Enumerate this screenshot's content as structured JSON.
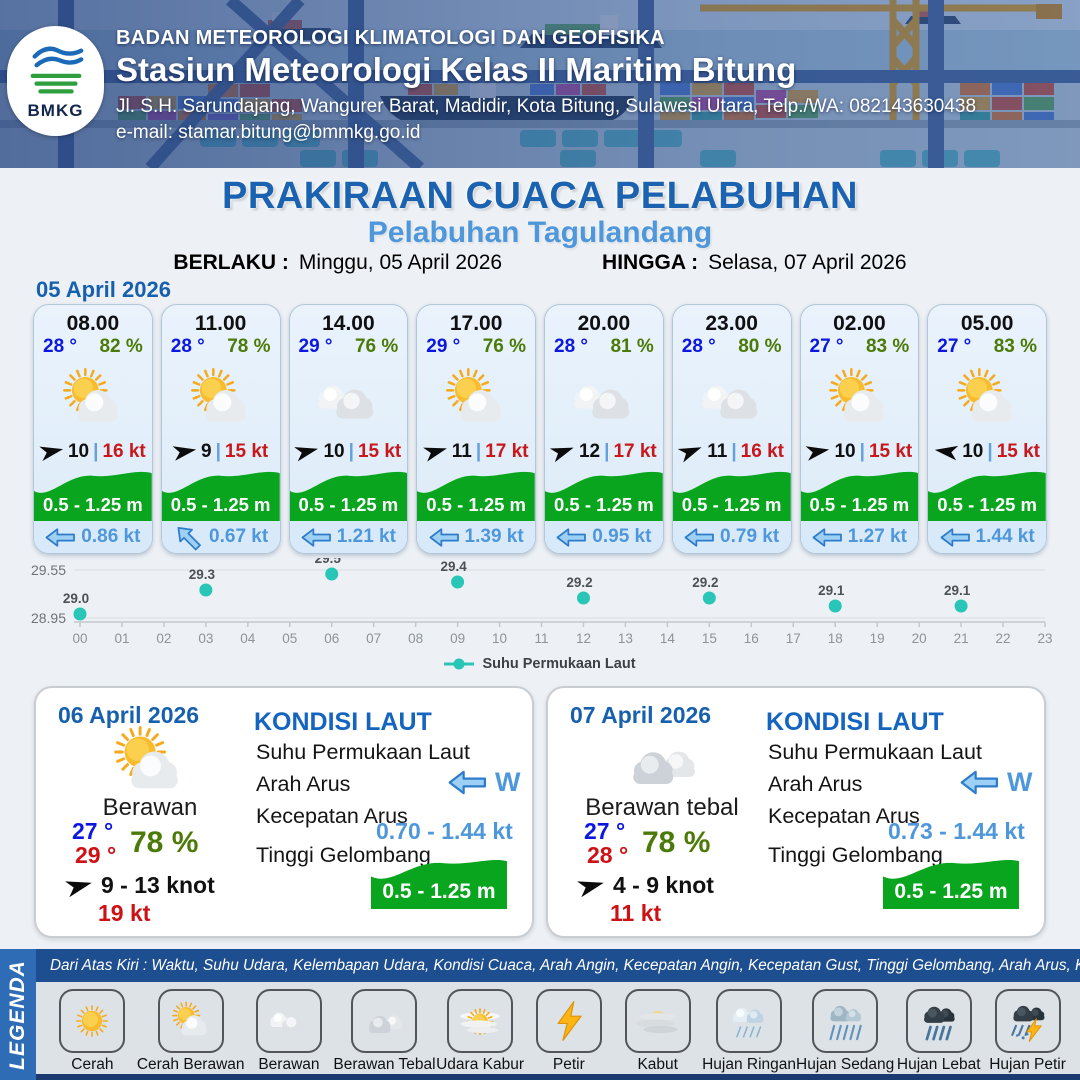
{
  "header": {
    "logo_text": "BMKG",
    "org": "BADAN METEOROLOGI KLIMATOLOGI DAN GEOFISIKA",
    "station": "Stasiun Meteorologi Kelas II Maritim Bitung",
    "address": "Jl. S.H. Sarundajang, Wangurer Barat, Madidir, Kota Bitung, Sulawesi Utara, Telp./WA: 082143630438",
    "email": "e-mail: stamar.bitung@bmmkg.go.id"
  },
  "title": {
    "main": "PRAKIRAAN CUACA PELABUHAN",
    "subtitle": "Pelabuhan Tagulandang",
    "berlaku_label": "BERLAKU :",
    "berlaku_value": "Minggu, 05 April 2026",
    "hingga_label": "HINGGA :",
    "hingga_value": "Selasa, 07 April 2026"
  },
  "forecast": {
    "date": "05 April 2026",
    "cards": [
      {
        "time": "08.00",
        "temp": "28 °",
        "humidity": "82 %",
        "icon": "cerah-berawan",
        "wind_speed": "10",
        "gust": "16 kt",
        "wave": "0.5 - 1.25 m",
        "current": "0.86 kt",
        "wind_dir_deg": -12,
        "current_rotation": 0
      },
      {
        "time": "11.00",
        "temp": "28 °",
        "humidity": "78 %",
        "icon": "cerah-berawan",
        "wind_speed": "9",
        "gust": "15 kt",
        "wave": "0.5 - 1.25 m",
        "current": "0.67 kt",
        "wind_dir_deg": -10,
        "current_rotation": 45
      },
      {
        "time": "14.00",
        "temp": "29 °",
        "humidity": "76 %",
        "icon": "berawan",
        "wind_speed": "10",
        "gust": "15 kt",
        "wave": "0.5 - 1.25 m",
        "current": "1.21 kt",
        "wind_dir_deg": -14,
        "current_rotation": 0
      },
      {
        "time": "17.00",
        "temp": "29 °",
        "humidity": "76 %",
        "icon": "cerah-berawan",
        "wind_speed": "11",
        "gust": "17 kt",
        "wave": "0.5 - 1.25 m",
        "current": "1.39 kt",
        "wind_dir_deg": -16,
        "current_rotation": 0
      },
      {
        "time": "20.00",
        "temp": "28 °",
        "humidity": "81 %",
        "icon": "berawan",
        "wind_speed": "12",
        "gust": "17 kt",
        "wave": "0.5 - 1.25 m",
        "current": "0.95 kt",
        "wind_dir_deg": -20,
        "current_rotation": 0
      },
      {
        "time": "23.00",
        "temp": "28 °",
        "humidity": "80 %",
        "icon": "berawan",
        "wind_speed": "11",
        "gust": "16 kt",
        "wave": "0.5 - 1.25 m",
        "current": "0.79 kt",
        "wind_dir_deg": -22,
        "current_rotation": 0
      },
      {
        "time": "02.00",
        "temp": "27 °",
        "humidity": "83 %",
        "icon": "cerah-berawan",
        "wind_speed": "10",
        "gust": "15 kt",
        "wave": "0.5 - 1.25 m",
        "current": "1.27 kt",
        "wind_dir_deg": -10,
        "current_rotation": 0
      },
      {
        "time": "05.00",
        "temp": "27 °",
        "humidity": "83 %",
        "icon": "cerah-berawan",
        "wind_speed": "10",
        "gust": "15 kt",
        "wave": "0.5 - 1.25 m",
        "current": "1.44 kt",
        "wind_dir_deg": 188,
        "current_rotation": 0
      }
    ]
  },
  "chart_data": {
    "type": "scatter",
    "title": "",
    "xlabel": "",
    "ylabel": "",
    "x": [
      0,
      3,
      6,
      9,
      12,
      15,
      18,
      21
    ],
    "x_ticks": [
      "00",
      "01",
      "02",
      "03",
      "04",
      "05",
      "06",
      "07",
      "08",
      "09",
      "10",
      "11",
      "12",
      "13",
      "14",
      "15",
      "16",
      "17",
      "18",
      "19",
      "20",
      "21",
      "22",
      "23"
    ],
    "series": [
      {
        "name": "Suhu Permukaan Laut",
        "values": [
          29.0,
          29.3,
          29.5,
          29.4,
          29.2,
          29.2,
          29.1,
          29.1
        ]
      }
    ],
    "y_gridlines": [
      28.95,
      29.55
    ],
    "ylim": [
      28.9,
      29.62
    ],
    "marker_color": "#29c5b7",
    "grid": true,
    "legend_position": "bottom"
  },
  "daily": [
    {
      "date": "06 April 2026",
      "icon": "cerah-berawan",
      "condition": "Berawan",
      "temp_min": "27 °",
      "temp_max": "29 °",
      "humidity": "78 %",
      "wind_range": "9  - 13 knot",
      "gust": "19 kt",
      "wind_dir_deg": -15,
      "sea": {
        "heading": "KONDISI LAUT",
        "sst_label": "Suhu Permukaan Laut",
        "arah_label": "Arah Arus",
        "arah_value": "W",
        "kecepatan_label": "Kecepatan Arus",
        "kecepatan_value": "0.70 - 1.44 kt",
        "gelombang_label": "Tinggi Gelombang",
        "gelombang_value": "0.5 - 1.25 m"
      }
    },
    {
      "date": "07 April 2026",
      "icon": "berawan-tebal",
      "condition": "Berawan tebal",
      "temp_min": "27 °",
      "temp_max": "28 °",
      "humidity": "78 %",
      "wind_range": "4  - 9 knot",
      "gust": "11 kt",
      "wind_dir_deg": -15,
      "sea": {
        "heading": "KONDISI LAUT",
        "sst_label": "Suhu Permukaan Laut",
        "arah_label": "Arah Arus",
        "arah_value": "W",
        "kecepatan_label": "Kecepatan Arus",
        "kecepatan_value": "0.73 - 1.44 kt",
        "gelombang_label": "Tinggi Gelombang",
        "gelombang_value": "0.5 - 1.25 m"
      }
    }
  ],
  "legend": {
    "side_label": "LEGENDA",
    "note": "Dari Atas Kiri : Waktu, Suhu Udara, Kelembapan Udara, Kondisi Cuaca, Arah Angin, Kecepatan Angin, Kecepatan Gust, Tinggi Gelombang, Arah Arus, Kecepatan Arus",
    "items": [
      {
        "label": "Cerah",
        "icon": "cerah"
      },
      {
        "label": "Cerah Berawan",
        "icon": "cerah-berawan"
      },
      {
        "label": "Berawan",
        "icon": "berawan"
      },
      {
        "label": "Berawan Tebal",
        "icon": "berawan-tebal"
      },
      {
        "label": "Udara Kabur",
        "icon": "udara-kabur"
      },
      {
        "label": "Petir",
        "icon": "petir"
      },
      {
        "label": "Kabut",
        "icon": "kabut"
      },
      {
        "label": "Hujan Ringan",
        "icon": "hujan-ringan"
      },
      {
        "label": "Hujan Sedang",
        "icon": "hujan-sedang"
      },
      {
        "label": "Hujan Lebat",
        "icon": "hujan-lebat"
      },
      {
        "label": "Hujan Petir",
        "icon": "hujan-petir"
      }
    ]
  },
  "colors": {
    "title_blue": "#1b63b0",
    "subtitle_blue": "#4e97db",
    "temp_blue": "#0b16e0",
    "humidity_green": "#4c7a08",
    "gust_red": "#c9181c",
    "wave_green": "#0aa51f",
    "current_blue": "#4f97db",
    "chart_teal": "#29c5b7",
    "legend_bar_blue": "#2e6db6",
    "note_bar_navy": "#1d4e8f"
  }
}
